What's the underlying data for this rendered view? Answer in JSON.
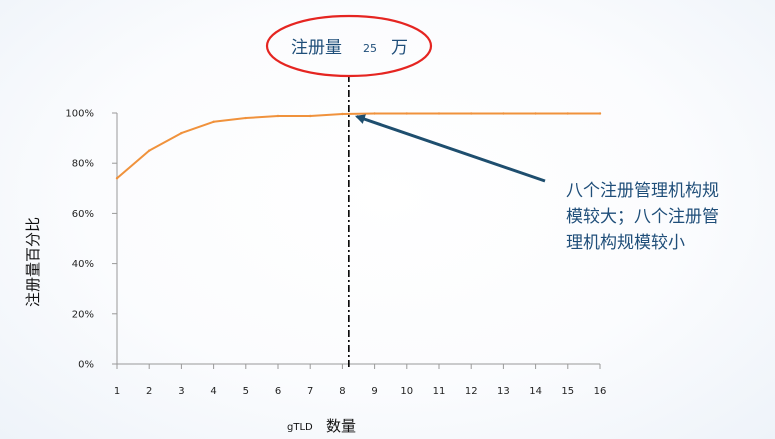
{
  "chart_data": {
    "type": "line",
    "title": "",
    "xlabel_prefix": "gTLD",
    "xlabel_main": "数量",
    "ylabel": "注册量百分比",
    "x": [
      1,
      2,
      3,
      4,
      5,
      6,
      7,
      8,
      9,
      10,
      11,
      12,
      13,
      14,
      15,
      16
    ],
    "xlim": [
      1,
      16
    ],
    "ylim": [
      0,
      100
    ],
    "yticks": [
      "0%",
      "20%",
      "40%",
      "60%",
      "80%",
      "100%"
    ],
    "ytick_values": [
      0,
      20,
      40,
      60,
      80,
      100
    ],
    "series": [
      {
        "color": "#f0923c",
        "points": [
          [
            1,
            74
          ],
          [
            2,
            85
          ],
          [
            3,
            92
          ],
          [
            4,
            96.5
          ],
          [
            5,
            98
          ],
          [
            6,
            98.8
          ],
          [
            7,
            98.8
          ],
          [
            8,
            99.6
          ],
          [
            9,
            99.8
          ],
          [
            10,
            99.8
          ],
          [
            11,
            99.8
          ],
          [
            12,
            99.8
          ],
          [
            13,
            99.8
          ],
          [
            14,
            99.8
          ],
          [
            15,
            99.8
          ],
          [
            16,
            99.8
          ]
        ]
      }
    ],
    "marker_line": {
      "x": 8.2,
      "style": "dash-dot",
      "color": "#000000"
    },
    "callout_top": {
      "text_a": "注册量",
      "number": "25",
      "text_b": "万",
      "ellipse_color": "#e52521"
    },
    "annotation": {
      "lines": [
        "八个注册管理机构规",
        "模较大；八个注册管",
        "理机构规模较小"
      ],
      "arrow_color": "#1e4e6e",
      "arrow_target": [
        8.2,
        99.8
      ]
    },
    "grid": false,
    "legend": "none"
  }
}
